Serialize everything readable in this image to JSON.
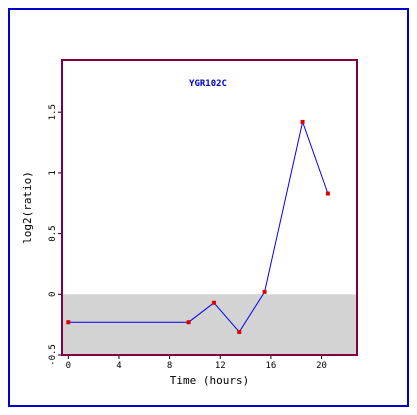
{
  "chart_data": {
    "type": "line",
    "title": "YGR102C",
    "xlabel": "Time (hours)",
    "ylabel": "log2(ratio)",
    "xlim": [
      -0.5,
      22.8
    ],
    "ylim": [
      -0.5,
      1.93
    ],
    "xticks": [
      0,
      4,
      8,
      12,
      16,
      20
    ],
    "yticks": [
      -0.5,
      0,
      0.5,
      1,
      1.5
    ],
    "ytick_labels": [
      "-0.5",
      "0",
      "0.5",
      "1",
      "1.5"
    ],
    "shaded_band": {
      "from": -0.5,
      "to": 0,
      "color": "#d3d3d3"
    },
    "series": [
      {
        "x": [
          0,
          9.5,
          11.5,
          13.5,
          15.5,
          18.5,
          20.5
        ],
        "y": [
          -0.23,
          -0.23,
          -0.07,
          -0.31,
          0.02,
          1.42,
          0.83
        ],
        "line_color": "#0000ff",
        "marker_color": "#dd0000"
      }
    ],
    "colors": {
      "frame_border": "#0000cc",
      "plot_border": "#800040",
      "title": "#0000cc"
    }
  }
}
